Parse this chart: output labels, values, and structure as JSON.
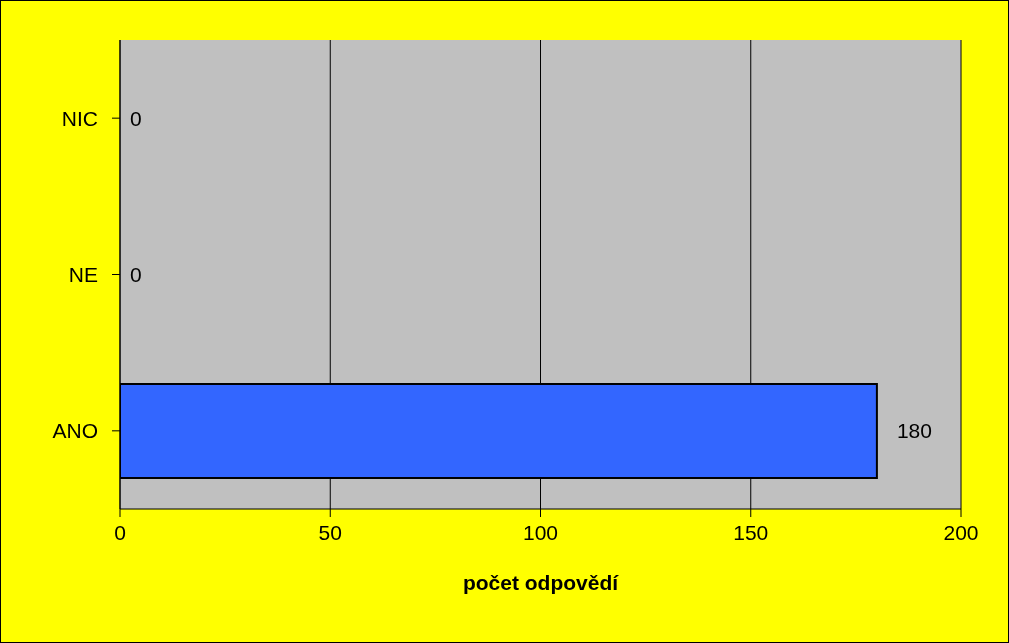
{
  "chart_data": {
    "type": "bar",
    "orientation": "horizontal",
    "xlabel": "počet odpovědí",
    "categories": [
      "NIC",
      "NE",
      "ANO"
    ],
    "values": [
      0,
      0,
      180
    ],
    "color": "#3366ff",
    "xlim": [
      0,
      200
    ],
    "xticks": [
      0,
      50,
      100,
      150,
      200
    ],
    "grid": "x",
    "data_labels": true
  }
}
